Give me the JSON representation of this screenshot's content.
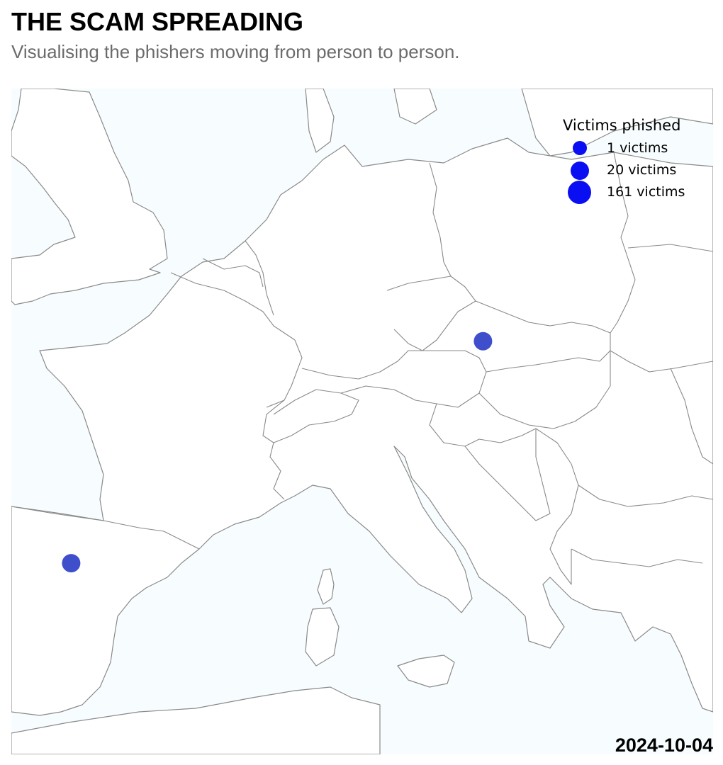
{
  "header": {
    "title": "THE SCAM SPREADING",
    "subtitle": "Visualising the phishers moving from person to person."
  },
  "map": {
    "region": "Western and Central Europe",
    "sea_color": "#f7fdfe",
    "land_color": "#ffffff",
    "border_color": "#8a8a8a",
    "markers": [
      {
        "label": "Vienna / Bratislava area",
        "lon": 17.0,
        "lat": 48.1,
        "color": "#3f4fcc"
      },
      {
        "label": "Northeast Spain",
        "lon": -0.9,
        "lat": 41.6,
        "color": "#3f4fcc"
      }
    ]
  },
  "legend": {
    "title": "Victims phished",
    "color": "#0a0ef2",
    "items": [
      {
        "label": "1 victims",
        "victims": 1
      },
      {
        "label": "20 victims",
        "victims": 20
      },
      {
        "label": "161 victims",
        "victims": 161
      }
    ]
  },
  "date": "2024-10-04"
}
